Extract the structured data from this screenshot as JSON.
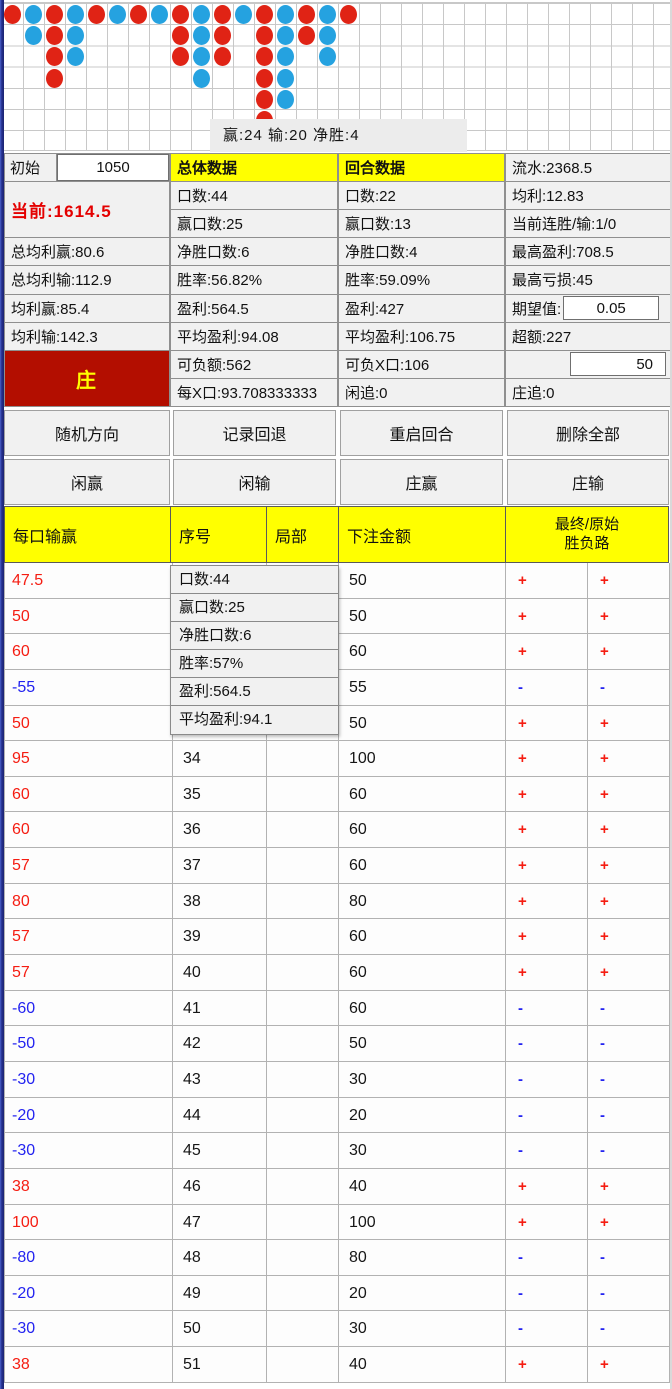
{
  "colors": {
    "banker_dot": "#e02315",
    "player_dot": "#25a2e0",
    "accent_yellow": "#ffff00",
    "banker_cell_bg": "#b30e00",
    "win_text": "#f51d12",
    "lose_text": "#2323f0",
    "current_text": "#e40000"
  },
  "road_grid": {
    "cols": 32,
    "rows": 7,
    "legend": {
      "R": "banker-red",
      "B": "player-blue"
    },
    "pattern": [
      "RBRBRBRBRBRBRBRBR...............",
      ".BRB....RBR.RBRB................",
      "..RB....RBR.RB.B................",
      "..R......B..RB..................",
      "............RB..................",
      "............R...................",
      "................................"
    ]
  },
  "grid_overlay": {
    "summary": "赢:24 输:20 净胜:4"
  },
  "stats": {
    "left": {
      "initial_label": "初始",
      "initial_value": "1050",
      "current": "当前:1614.5",
      "rows": [
        "总均利赢:80.6",
        "总均利输:112.9",
        "均利赢:85.4",
        "均利输:142.3"
      ],
      "banker": "庄"
    },
    "overall": {
      "header": "总体数据",
      "rows": [
        "口数:44",
        "赢口数:25",
        "净胜口数:6",
        "胜率:56.82%",
        "盈利:564.5",
        "平均盈利:94.08",
        "可负额:562",
        "每X口:93.708333333"
      ]
    },
    "round": {
      "header": "回合数据",
      "rows": [
        "口数:22",
        "赢口数:13",
        "净胜口数:4",
        "胜率:59.09%",
        "盈利:427",
        "平均盈利:106.75",
        "可负X口:106",
        "闲追:0"
      ]
    },
    "right": {
      "rows_top": [
        "流水:2368.5",
        "均利:12.83",
        "当前连胜/输:1/0",
        "最高盈利:708.5",
        "最高亏损:45"
      ],
      "expect_label": "期望值:",
      "expect_value": "0.05",
      "excess": "超额:227",
      "amount_value": "50",
      "banker_chase": "庄追:0"
    }
  },
  "buttons": {
    "row1": [
      "随机方向",
      "记录回退",
      "重启回合",
      "删除全部"
    ],
    "row2": [
      "闲赢",
      "闲输",
      "庄赢",
      "庄输"
    ]
  },
  "table": {
    "headers": {
      "result": "每口输赢",
      "seq": "序号",
      "partial": "局部",
      "bet": "下注金额",
      "final_line1": "最终/原始",
      "final_line2": "胜负路"
    },
    "rows": [
      {
        "result": "47.5",
        "seq": "",
        "partial": "",
        "bet": "50",
        "final": "+",
        "original": "+"
      },
      {
        "result": "50",
        "seq": "",
        "partial": "",
        "bet": "50",
        "final": "+",
        "original": "+"
      },
      {
        "result": "60",
        "seq": "",
        "partial": "",
        "bet": "60",
        "final": "+",
        "original": "+"
      },
      {
        "result": "-55",
        "seq": "",
        "partial": "",
        "bet": "55",
        "final": "-",
        "original": "-"
      },
      {
        "result": "50",
        "seq": "",
        "partial": "",
        "bet": "50",
        "final": "+",
        "original": "+"
      },
      {
        "result": "95",
        "seq": "34",
        "partial": "",
        "bet": "100",
        "final": "+",
        "original": "+"
      },
      {
        "result": "60",
        "seq": "35",
        "partial": "",
        "bet": "60",
        "final": "+",
        "original": "+"
      },
      {
        "result": "60",
        "seq": "36",
        "partial": "",
        "bet": "60",
        "final": "+",
        "original": "+"
      },
      {
        "result": "57",
        "seq": "37",
        "partial": "",
        "bet": "60",
        "final": "+",
        "original": "+"
      },
      {
        "result": "80",
        "seq": "38",
        "partial": "",
        "bet": "80",
        "final": "+",
        "original": "+"
      },
      {
        "result": "57",
        "seq": "39",
        "partial": "",
        "bet": "60",
        "final": "+",
        "original": "+"
      },
      {
        "result": "57",
        "seq": "40",
        "partial": "",
        "bet": "60",
        "final": "+",
        "original": "+"
      },
      {
        "result": "-60",
        "seq": "41",
        "partial": "",
        "bet": "60",
        "final": "-",
        "original": "-"
      },
      {
        "result": "-50",
        "seq": "42",
        "partial": "",
        "bet": "50",
        "final": "-",
        "original": "-"
      },
      {
        "result": "-30",
        "seq": "43",
        "partial": "",
        "bet": "30",
        "final": "-",
        "original": "-"
      },
      {
        "result": "-20",
        "seq": "44",
        "partial": "",
        "bet": "20",
        "final": "-",
        "original": "-"
      },
      {
        "result": "-30",
        "seq": "45",
        "partial": "",
        "bet": "30",
        "final": "-",
        "original": "-"
      },
      {
        "result": "38",
        "seq": "46",
        "partial": "",
        "bet": "40",
        "final": "+",
        "original": "+"
      },
      {
        "result": "100",
        "seq": "47",
        "partial": "",
        "bet": "100",
        "final": "+",
        "original": "+"
      },
      {
        "result": "-80",
        "seq": "48",
        "partial": "",
        "bet": "80",
        "final": "-",
        "original": "-"
      },
      {
        "result": "-20",
        "seq": "49",
        "partial": "",
        "bet": "20",
        "final": "-",
        "original": "-"
      },
      {
        "result": "-30",
        "seq": "50",
        "partial": "",
        "bet": "30",
        "final": "-",
        "original": "-"
      },
      {
        "result": "38",
        "seq": "51",
        "partial": "",
        "bet": "40",
        "final": "+",
        "original": "+"
      }
    ]
  },
  "table_tooltip": {
    "rows": [
      "口数:44",
      "赢口数:25",
      "净胜口数:6",
      "胜率:57%",
      "盈利:564.5",
      "平均盈利:94.1"
    ]
  }
}
